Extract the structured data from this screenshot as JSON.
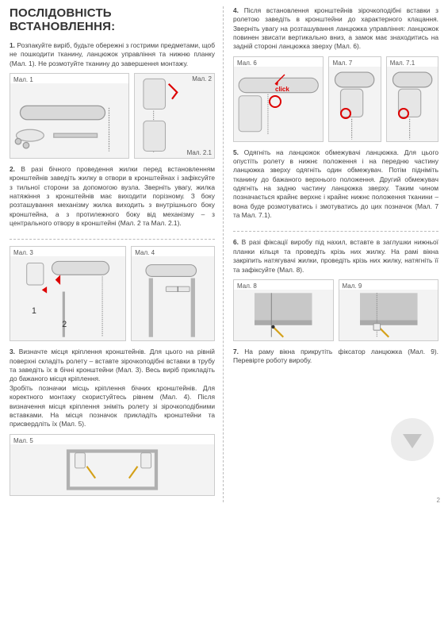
{
  "title": "ПОСЛІДОВНІСТЬ ВСТАНОВЛЕННЯ:",
  "page_number": "2",
  "left": {
    "step1": "<b>1.</b> Розпакуйте виріб, будьте обережні з гострими предметами, щоб не пошкодити тканину, ланцюжок управління та нижню планку (Мал. 1). Не розмотуйте тканину до завершення монтажу.",
    "fig1": "Мал. 1",
    "fig2": "Мал. 2",
    "fig2_1": "Мал. 2.1",
    "step2": "<b>2.</b> В разі бічного проведення жилки перед встановленням кронштейнів заведіть жилку в отвори в кронштейнах і зафіксуйте з тильної сторони за допомогою вузла. Зверніть увагу, жилка натяжіння з кронштейнів має виходити порізному. З боку розташування механізму жилка виходить з внутрішнього боку кронштейна, а з протилежного боку від механізму – з центрального отвору в кронштейні (Мал. 2 та Мал. 2.1).",
    "fig3": "Мал. 3",
    "fig4": "Мал. 4",
    "step3": "<b>3.</b> Визначте місця кріплення кронштейнів. Для цього на рівній поверхні складіть ролету – вставте зірочкоподібні вставки в трубу та заведіть їх в бічні кронштейни (Мал. 3). Весь виріб прикладіть до бажаного місця кріплення.\nЗробіть позначки місць кріплення бічних кронштейнів. Для коректного монтажу скористуйтесь рівнем (Мал. 4). Після визначення місця кріплення зніміть ролету зі зірочкоподібними вставками. На місця позначок прикладіть кронштейни та присвердліть їх (Мал. 5).",
    "fig5": "Мал. 5"
  },
  "right": {
    "step4": "<b>4.</b> Після встановлення кронштейнів зірочкоподібні вставки з ролетою заведіть в кронштейни до характерного клацання. Зверніть увагу на розташування ланцюжка управління: ланцюжок повинен звисати вертикально вниз, а замок має знаходитись на задній стороні ланцюжка зверху (Мал. 6).",
    "fig6": "Мал. 6",
    "fig7": "Мал. 7",
    "fig7_1": "Мал. 7.1",
    "step5": "<b>5.</b> Одягніть на ланцюжок обмежувачі ланцюжка. Для цього опустіть ролету в нижнє положення і на передню частину ланцюжка зверху одягніть один обмежувач. Потім підніміть тканину до бажаного верхнього положення. Другий обмежувач одягніть на задню частину ланцюжка зверху. Таким чином позначається крайнє верхнє і крайнє нижнє положення тканини – вона буде розмотуватись і змотуватись до цих позначок (Мал. 7 та Мал. 7.1).",
    "step6": "<b>6.</b> В разі фіксації виробу під нахил, вставте в заглушки нижньої планки кільця та проведіть крізь них жилку. На рамі вікна закріпить натягувачі жилки, проведіть крізь них жилку, натягніть її та зафіксуйте (Мал. 8).",
    "fig8": "Мал. 8",
    "fig9": "Мал. 9",
    "step7": "<b>7.</b> На раму вікна прикрутіть фіксатор ланцюжка (Мал. 9). Перевірте роботу виробу."
  }
}
